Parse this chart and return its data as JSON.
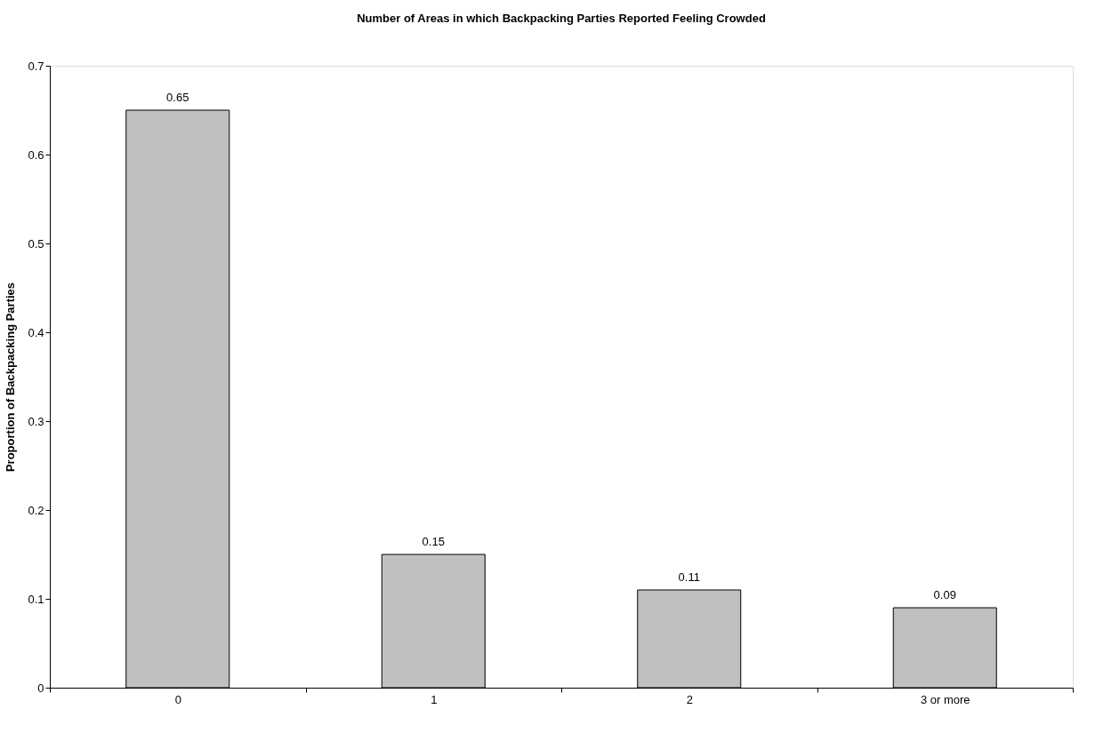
{
  "chart_data": {
    "type": "bar",
    "title": "Number of Areas in which Backpacking Parties Reported Feeling Crowded",
    "ylabel": "Proportion of Backpacking Parties",
    "categories": [
      "0",
      "1",
      "2",
      "3 or more"
    ],
    "values": [
      0.65,
      0.15,
      0.11,
      0.09
    ],
    "color": "#c0c0c0",
    "ylim": [
      0,
      0.7
    ],
    "yticks": [
      0,
      0.1,
      0.2,
      0.3,
      0.4,
      0.5,
      0.6,
      0.7
    ],
    "data_labels": true
  }
}
